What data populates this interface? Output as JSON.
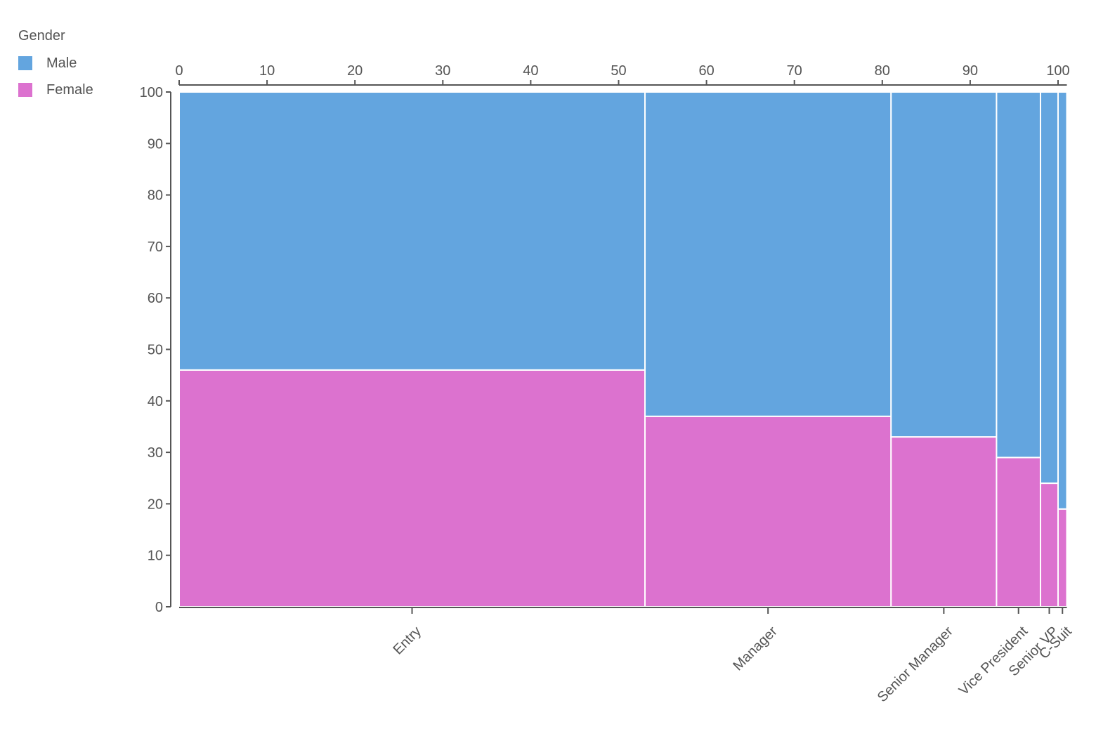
{
  "chart_data": {
    "type": "mosaic",
    "title": "",
    "legend": {
      "title": "Gender",
      "position": "top-left",
      "entries": [
        {
          "label": "Male",
          "color": "#63a5df"
        },
        {
          "label": "Female",
          "color": "#dc72cf"
        }
      ]
    },
    "categories": [
      "Entry",
      "Manager",
      "Senior Manager",
      "Vice President",
      "Senior VP",
      "C-Suit"
    ],
    "widths": [
      53,
      28,
      12,
      5,
      2,
      1
    ],
    "series": [
      {
        "name": "Female",
        "values": [
          46,
          37,
          33,
          29,
          24,
          19
        ]
      },
      {
        "name": "Male",
        "values": [
          54,
          63,
          67,
          71,
          76,
          81
        ]
      }
    ],
    "x_top_ticks": [
      0,
      10,
      20,
      30,
      40,
      50,
      60,
      70,
      80,
      90,
      100
    ],
    "y_ticks": [
      0,
      10,
      20,
      30,
      40,
      50,
      60,
      70,
      80,
      90,
      100
    ],
    "xlim": [
      0,
      100
    ],
    "ylim": [
      0,
      100
    ],
    "xlabel": "",
    "ylabel": "",
    "grid": false
  }
}
